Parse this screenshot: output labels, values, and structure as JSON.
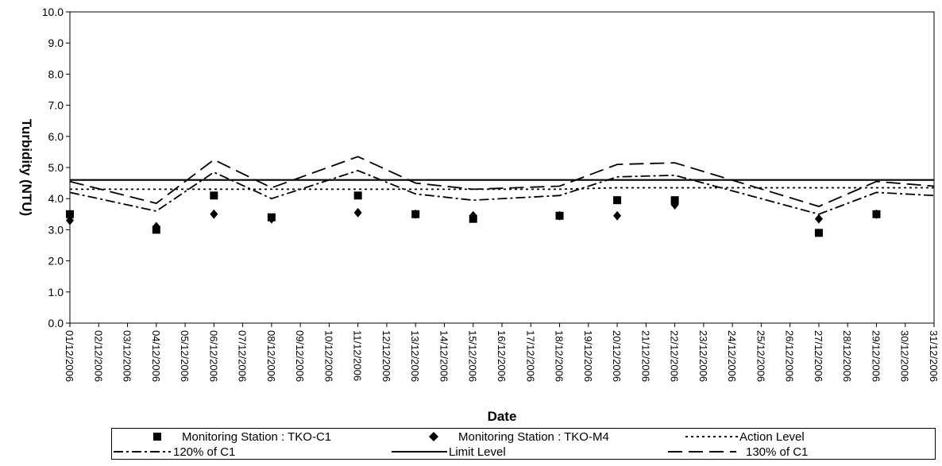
{
  "chart_data": {
    "type": "line",
    "title": "",
    "xlabel": "Date",
    "ylabel": "Turbidity (NTU)",
    "ylim": [
      0,
      10
    ],
    "y_ticks": [
      "0.0",
      "1.0",
      "2.0",
      "3.0",
      "4.0",
      "5.0",
      "6.0",
      "7.0",
      "8.0",
      "9.0",
      "10.0"
    ],
    "categories": [
      "01/12/2006",
      "02/12/2006",
      "03/12/2006",
      "04/12/2006",
      "05/12/2006",
      "06/12/2006",
      "07/12/2006",
      "08/12/2006",
      "09/12/2006",
      "10/12/2006",
      "11/12/2006",
      "12/12/2006",
      "13/12/2006",
      "14/12/2006",
      "15/12/2006",
      "16/12/2006",
      "17/12/2006",
      "18/12/2006",
      "19/12/2006",
      "20/12/2006",
      "21/12/2006",
      "22/12/2006",
      "23/12/2006",
      "24/12/2006",
      "25/12/2006",
      "26/12/2006",
      "27/12/2006",
      "28/12/2006",
      "29/12/2006",
      "30/12/2006",
      "31/12/2006"
    ],
    "grid": false,
    "legend_position": "bottom",
    "series": [
      {
        "name": "Monitoring Station : TKO-C1",
        "style": "square-marker",
        "color": "#000000",
        "values": [
          3.5,
          null,
          null,
          3.0,
          null,
          4.1,
          null,
          3.4,
          null,
          null,
          4.1,
          null,
          3.5,
          null,
          3.35,
          null,
          null,
          3.45,
          null,
          3.95,
          null,
          3.95,
          null,
          null,
          null,
          null,
          2.9,
          null,
          3.5,
          null,
          null
        ]
      },
      {
        "name": "Monitoring Station : TKO-M4",
        "style": "diamond-marker",
        "color": "#000000",
        "values": [
          3.3,
          null,
          null,
          3.1,
          null,
          3.5,
          null,
          3.35,
          null,
          null,
          3.55,
          null,
          3.5,
          null,
          3.45,
          null,
          null,
          3.45,
          null,
          3.45,
          null,
          3.8,
          null,
          null,
          null,
          null,
          3.35,
          null,
          3.5,
          null,
          null
        ]
      },
      {
        "name": "Action Level",
        "style": "dotted",
        "color": "#000000",
        "values": [
          4.3,
          null,
          null,
          4.3,
          null,
          4.3,
          null,
          4.3,
          null,
          null,
          4.3,
          null,
          4.3,
          null,
          4.3,
          null,
          null,
          4.3,
          null,
          4.35,
          null,
          4.35,
          null,
          null,
          null,
          null,
          4.35,
          null,
          4.35,
          null,
          4.35
        ]
      },
      {
        "name": "120% of C1",
        "style": "dash-dot",
        "color": "#000000",
        "values": [
          4.2,
          null,
          null,
          3.6,
          null,
          4.85,
          null,
          4.0,
          null,
          null,
          4.9,
          null,
          4.15,
          null,
          3.95,
          null,
          null,
          4.1,
          null,
          4.7,
          null,
          4.75,
          null,
          null,
          null,
          null,
          3.5,
          null,
          4.2,
          null,
          4.1
        ]
      },
      {
        "name": "Limit Level",
        "style": "solid",
        "color": "#000000",
        "values": [
          4.6,
          null,
          null,
          4.6,
          null,
          4.6,
          null,
          4.6,
          null,
          null,
          4.6,
          null,
          4.6,
          null,
          4.6,
          null,
          null,
          4.6,
          null,
          4.6,
          null,
          4.6,
          null,
          null,
          null,
          null,
          4.6,
          null,
          4.6,
          null,
          4.6
        ]
      },
      {
        "name": "130% of C1",
        "style": "long-dash",
        "color": "#000000",
        "values": [
          4.55,
          null,
          null,
          3.85,
          null,
          5.25,
          null,
          4.35,
          null,
          null,
          5.35,
          null,
          4.5,
          null,
          4.3,
          null,
          null,
          4.4,
          null,
          5.1,
          null,
          5.15,
          null,
          null,
          null,
          null,
          3.75,
          null,
          4.55,
          null,
          4.4
        ]
      }
    ]
  }
}
